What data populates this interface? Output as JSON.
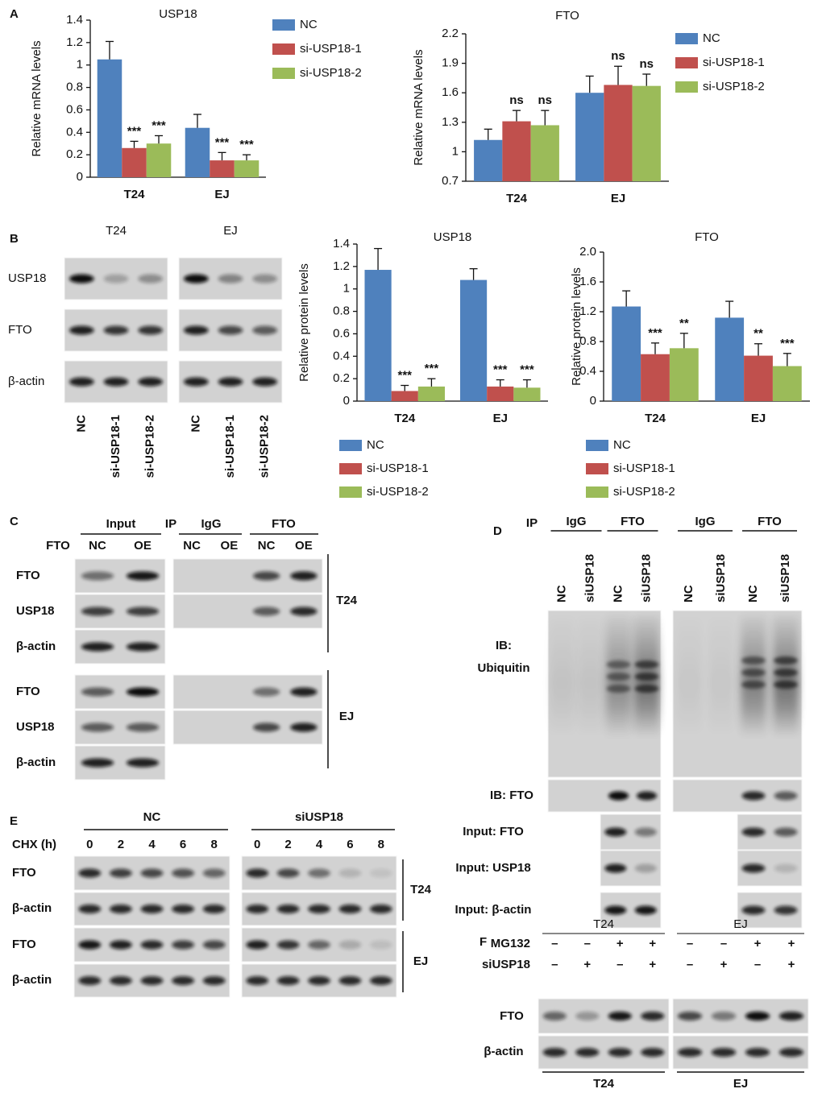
{
  "panel_labels": [
    "A",
    "B",
    "C",
    "D",
    "E",
    "F"
  ],
  "chart_data": [
    {
      "type": "bar",
      "title": "USP18",
      "y_label": "Relative mRNA levels",
      "categories": [
        "T24",
        "EJ"
      ],
      "series": [
        {
          "name": "NC",
          "color": "#4f81bd",
          "values": [
            1.05,
            0.44
          ],
          "errors": [
            0.16,
            0.12
          ]
        },
        {
          "name": "si-USP18-1",
          "color": "#c0504d",
          "values": [
            0.26,
            0.15
          ],
          "errors": [
            0.06,
            0.07
          ],
          "annotations": [
            "***",
            "***"
          ]
        },
        {
          "name": "si-USP18-2",
          "color": "#9bbb59",
          "values": [
            0.3,
            0.15
          ],
          "errors": [
            0.07,
            0.05
          ],
          "annotations": [
            "***",
            "***"
          ]
        }
      ],
      "ylim": [
        0,
        1.4
      ],
      "yticks": [
        0,
        0.2,
        0.4,
        0.6,
        0.8,
        1,
        1.2,
        1.4
      ],
      "grid": false,
      "legend": "right"
    },
    {
      "type": "bar",
      "title": "FTO",
      "y_label": "Relative mRNA levels",
      "categories": [
        "T24",
        "EJ"
      ],
      "series": [
        {
          "name": "NC",
          "color": "#4f81bd",
          "values": [
            1.12,
            1.6
          ],
          "errors": [
            0.11,
            0.17
          ]
        },
        {
          "name": "si-USP18-1",
          "color": "#c0504d",
          "values": [
            1.31,
            1.68
          ],
          "errors": [
            0.11,
            0.19
          ],
          "annotations": [
            "ns",
            "ns"
          ]
        },
        {
          "name": "si-USP18-2",
          "color": "#9bbb59",
          "values": [
            1.27,
            1.67
          ],
          "errors": [
            0.15,
            0.12
          ],
          "annotations": [
            "ns",
            "ns"
          ]
        }
      ],
      "ylim": [
        0.7,
        2.2
      ],
      "yticks": [
        0.7,
        1,
        1.3,
        1.6,
        1.9,
        2.2
      ],
      "grid": false,
      "legend": "right"
    },
    {
      "type": "bar",
      "title": "USP18",
      "y_label": "Relative protein levels",
      "categories": [
        "T24",
        "EJ"
      ],
      "series": [
        {
          "name": "NC",
          "color": "#4f81bd",
          "values": [
            1.17,
            1.08
          ],
          "errors": [
            0.19,
            0.1
          ]
        },
        {
          "name": "si-USP18-1",
          "color": "#c0504d",
          "values": [
            0.09,
            0.13
          ],
          "errors": [
            0.05,
            0.06
          ],
          "annotations": [
            "***",
            "***"
          ]
        },
        {
          "name": "si-USP18-2",
          "color": "#9bbb59",
          "values": [
            0.13,
            0.12
          ],
          "errors": [
            0.07,
            0.07
          ],
          "annotations": [
            "***",
            "***"
          ]
        }
      ],
      "ylim": [
        0,
        1.4
      ],
      "yticks": [
        0,
        0.2,
        0.4,
        0.6,
        0.8,
        1,
        1.2,
        1.4
      ],
      "grid": false,
      "legend": "below"
    },
    {
      "type": "bar",
      "title": "FTO",
      "y_label": "Relative protein levels",
      "categories": [
        "T24",
        "EJ"
      ],
      "series": [
        {
          "name": "NC",
          "color": "#4f81bd",
          "values": [
            1.27,
            1.12
          ],
          "errors": [
            0.21,
            0.22
          ]
        },
        {
          "name": "si-USP18-1",
          "color": "#c0504d",
          "values": [
            0.63,
            0.61
          ],
          "errors": [
            0.15,
            0.16
          ],
          "annotations": [
            "***",
            "**"
          ]
        },
        {
          "name": "si-USP18-2",
          "color": "#9bbb59",
          "values": [
            0.71,
            0.47
          ],
          "errors": [
            0.2,
            0.17
          ],
          "annotations": [
            "**",
            "***"
          ]
        }
      ],
      "ylim": [
        0,
        2
      ],
      "yticks": [
        0,
        0.4,
        0.8,
        1.2,
        1.6,
        {
          "value": 2,
          "label": "2.0"
        }
      ],
      "grid": false,
      "legend": "below"
    }
  ],
  "blot_b": {
    "cells": [
      "T24",
      "EJ"
    ],
    "rows": [
      "USP18",
      "FTO",
      "β-actin"
    ],
    "lanes": [
      "NC",
      "si-USP18-1",
      "si-USP18-2"
    ]
  },
  "blot_c": {
    "input": "Input",
    "ip": "IP",
    "igg": "IgG",
    "fto": "FTO",
    "factor": "FTO",
    "lanes": [
      "NC",
      "OE"
    ],
    "rows": [
      "FTO",
      "USP18",
      "β-actin"
    ],
    "cells": [
      "T24",
      "EJ"
    ]
  },
  "blot_d": {
    "ip": "IP",
    "groups": [
      "IgG",
      "FTO"
    ],
    "lanes": [
      "NC",
      "siUSP18"
    ],
    "ub": [
      "IB:",
      "Ubiquitin"
    ],
    "ib_fto": "IB: FTO",
    "inputs": [
      "Input: FTO",
      "Input: USP18",
      "Input: β-actin"
    ]
  },
  "blot_e": {
    "conditions": [
      "NC",
      "siUSP18"
    ],
    "chx": "CHX (h)",
    "times": [
      "0",
      "2",
      "4",
      "6",
      "8"
    ],
    "rows": [
      "FTO",
      "β-actin"
    ],
    "cells": [
      "T24",
      "EJ"
    ]
  },
  "blot_f": {
    "cells": [
      "T24",
      "EJ"
    ],
    "treatments": [
      {
        "name": "MG132",
        "signs": [
          "–",
          "–",
          "+",
          "+"
        ]
      },
      {
        "name": "siUSP18",
        "signs": [
          "–",
          "+",
          "–",
          "+"
        ]
      }
    ],
    "rows": [
      "FTO",
      "β-actin"
    ]
  }
}
